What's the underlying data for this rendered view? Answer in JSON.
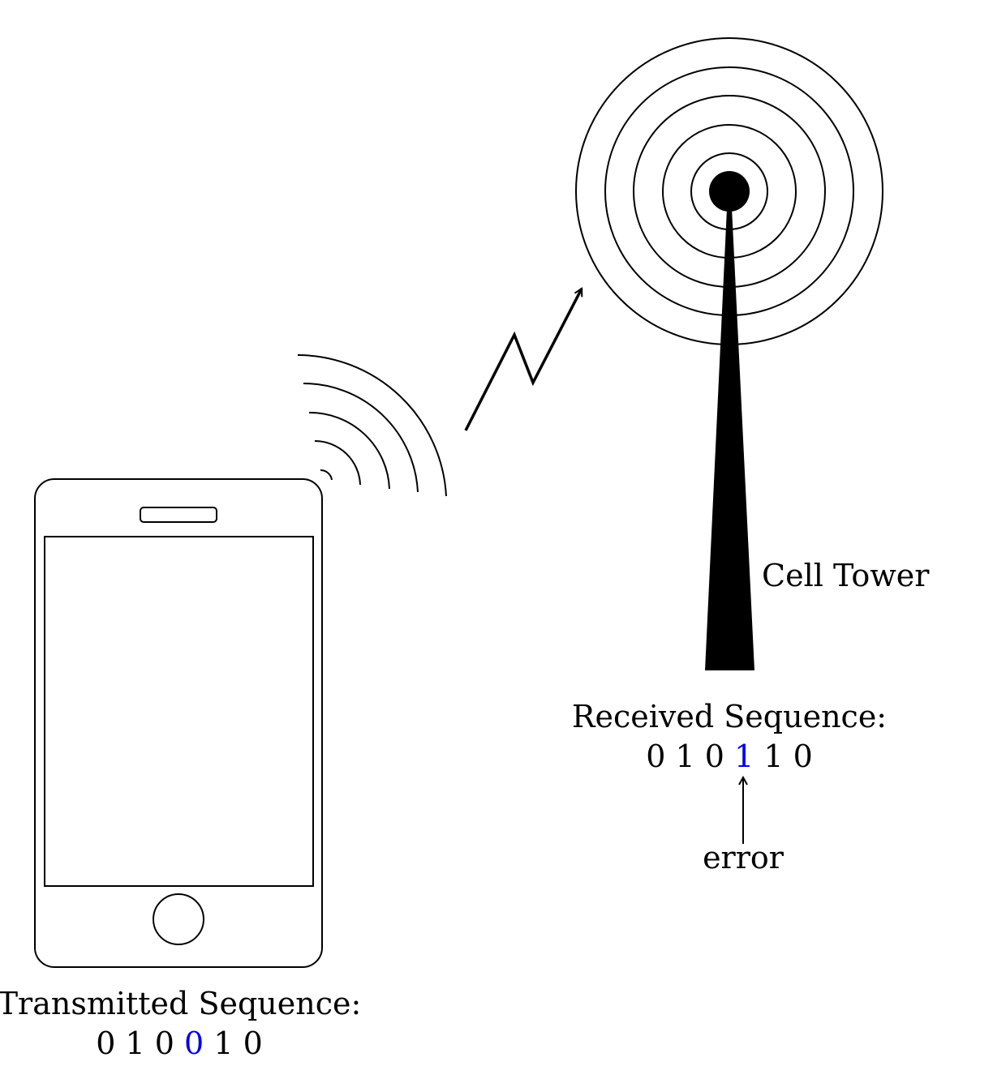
{
  "labels": {
    "cell_tower": "Cell Tower",
    "received_title": "Received Sequence:",
    "transmitted_title": "Transmitted Sequence:",
    "error": "error"
  },
  "received_bits": [
    "0",
    "1",
    "0",
    "1",
    "1",
    "0"
  ],
  "received_highlight_index": 3,
  "transmitted_bits": [
    "0",
    "1",
    "0",
    "0",
    "1",
    "0"
  ],
  "transmitted_highlight_index": 3,
  "colors": {
    "highlight": "#0000ee",
    "stroke": "#000000"
  }
}
